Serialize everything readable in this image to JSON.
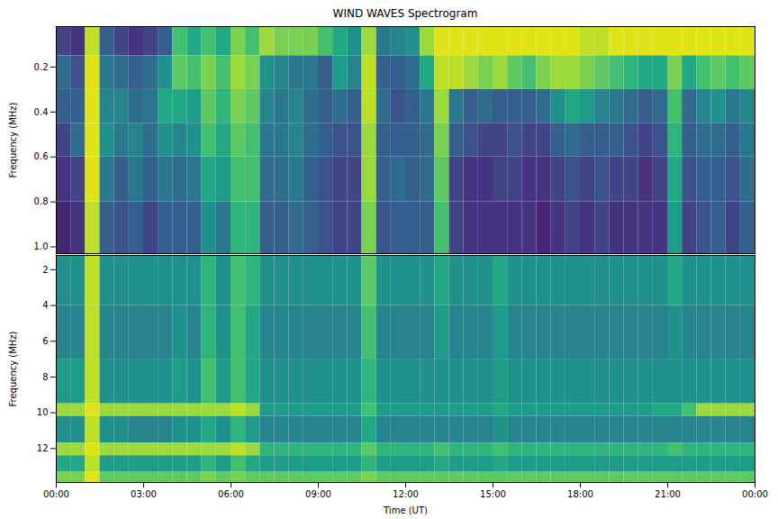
{
  "chart_data": [
    {
      "type": "heatmap",
      "title": "WIND WAVES Spectrogram",
      "ylabel": "Frequency (MHz)",
      "color": "viridis",
      "zlim": [
        0,
        1
      ],
      "tick_labels": "y",
      "xlim": [
        0,
        24
      ],
      "ylim": [
        0.02,
        1.03
      ],
      "yticks": [
        0.2,
        0.4,
        0.6,
        0.8,
        {
          "value": 1,
          "label": "1.0"
        }
      ],
      "x_edges": [
        0,
        0.5,
        1,
        1.5,
        2,
        2.5,
        3,
        3.5,
        4,
        4.5,
        5,
        5.5,
        6,
        6.5,
        7,
        7.5,
        8,
        8.5,
        9,
        9.5,
        10,
        10.5,
        11,
        11.5,
        12,
        12.5,
        13,
        13.5,
        14,
        14.5,
        15,
        15.5,
        16,
        16.5,
        17,
        17.5,
        18,
        18.5,
        19,
        19.5,
        20,
        20.5,
        21,
        21.5,
        22,
        22.5,
        23,
        23.5,
        24
      ],
      "y_edges": [
        0.02,
        0.15,
        0.3,
        0.45,
        0.6,
        0.8,
        1.03
      ],
      "values": [
        [
          0.2,
          0.15,
          0.9,
          0.3,
          0.2,
          0.15,
          0.2,
          0.3,
          0.7,
          0.6,
          0.7,
          0.6,
          0.8,
          0.7,
          0.85,
          0.8,
          0.8,
          0.8,
          0.7,
          0.6,
          0.5,
          0.85,
          0.4,
          0.45,
          0.5,
          0.85,
          0.95,
          0.95,
          0.95,
          0.95,
          0.95,
          0.95,
          0.95,
          0.95,
          0.95,
          0.95,
          0.9,
          0.9,
          0.95,
          0.95,
          0.95,
          0.95,
          0.95,
          0.95,
          0.95,
          0.95,
          0.95,
          0.95
        ],
        [
          0.35,
          0.25,
          0.95,
          0.4,
          0.35,
          0.3,
          0.35,
          0.5,
          0.75,
          0.7,
          0.8,
          0.7,
          0.85,
          0.8,
          0.5,
          0.45,
          0.4,
          0.4,
          0.3,
          0.55,
          0.45,
          0.9,
          0.3,
          0.3,
          0.35,
          0.6,
          0.9,
          0.9,
          0.85,
          0.8,
          0.85,
          0.75,
          0.7,
          0.8,
          0.85,
          0.85,
          0.8,
          0.75,
          0.7,
          0.65,
          0.6,
          0.6,
          0.8,
          0.6,
          0.7,
          0.75,
          0.7,
          0.75
        ],
        [
          0.3,
          0.3,
          0.95,
          0.45,
          0.45,
          0.35,
          0.4,
          0.6,
          0.6,
          0.55,
          0.75,
          0.65,
          0.8,
          0.75,
          0.45,
          0.4,
          0.45,
          0.35,
          0.3,
          0.35,
          0.3,
          0.9,
          0.35,
          0.25,
          0.3,
          0.4,
          0.85,
          0.4,
          0.3,
          0.35,
          0.3,
          0.3,
          0.3,
          0.35,
          0.5,
          0.6,
          0.55,
          0.45,
          0.4,
          0.35,
          0.3,
          0.35,
          0.7,
          0.35,
          0.45,
          0.5,
          0.4,
          0.45
        ],
        [
          0.2,
          0.35,
          0.95,
          0.5,
          0.4,
          0.45,
          0.35,
          0.5,
          0.45,
          0.5,
          0.7,
          0.6,
          0.75,
          0.7,
          0.4,
          0.4,
          0.45,
          0.35,
          0.3,
          0.25,
          0.25,
          0.85,
          0.3,
          0.3,
          0.3,
          0.35,
          0.8,
          0.3,
          0.25,
          0.2,
          0.2,
          0.25,
          0.2,
          0.2,
          0.3,
          0.35,
          0.3,
          0.3,
          0.3,
          0.25,
          0.2,
          0.25,
          0.65,
          0.3,
          0.35,
          0.35,
          0.3,
          0.4
        ],
        [
          0.15,
          0.2,
          0.95,
          0.4,
          0.3,
          0.4,
          0.3,
          0.4,
          0.35,
          0.4,
          0.6,
          0.55,
          0.7,
          0.7,
          0.35,
          0.35,
          0.4,
          0.3,
          0.25,
          0.2,
          0.2,
          0.85,
          0.3,
          0.35,
          0.3,
          0.35,
          0.75,
          0.2,
          0.15,
          0.15,
          0.2,
          0.2,
          0.15,
          0.15,
          0.2,
          0.25,
          0.2,
          0.25,
          0.2,
          0.2,
          0.15,
          0.2,
          0.6,
          0.25,
          0.3,
          0.3,
          0.25,
          0.35
        ],
        [
          0.1,
          0.15,
          0.9,
          0.3,
          0.25,
          0.3,
          0.2,
          0.3,
          0.3,
          0.3,
          0.5,
          0.4,
          0.65,
          0.65,
          0.3,
          0.3,
          0.35,
          0.3,
          0.25,
          0.2,
          0.2,
          0.8,
          0.25,
          0.3,
          0.3,
          0.3,
          0.7,
          0.2,
          0.15,
          0.15,
          0.15,
          0.15,
          0.15,
          0.1,
          0.15,
          0.2,
          0.15,
          0.2,
          0.15,
          0.15,
          0.15,
          0.15,
          0.55,
          0.2,
          0.25,
          0.3,
          0.2,
          0.3
        ]
      ]
    },
    {
      "type": "heatmap",
      "xlabel": "Time (UT)",
      "ylabel": "Frequency (MHz)",
      "color": "viridis",
      "zlim": [
        0,
        1
      ],
      "xlim": [
        0,
        24
      ],
      "xticks": [
        {
          "value": 0,
          "label": "00:00"
        },
        {
          "value": 3,
          "label": "03:00"
        },
        {
          "value": 6,
          "label": "06:00"
        },
        {
          "value": 9,
          "label": "09:00"
        },
        {
          "value": 12,
          "label": "12:00"
        },
        {
          "value": 15,
          "label": "15:00"
        },
        {
          "value": 18,
          "label": "18:00"
        },
        {
          "value": 21,
          "label": "21:00"
        },
        {
          "value": 24,
          "label": "00:00"
        }
      ],
      "ylim": [
        1.2,
        13.9
      ],
      "yticks": [
        2,
        4,
        6,
        8,
        10,
        12
      ],
      "x_edges": [
        0,
        0.5,
        1,
        1.5,
        2,
        2.5,
        3,
        3.5,
        4,
        4.5,
        5,
        5.5,
        6,
        6.5,
        7,
        7.5,
        8,
        8.5,
        9,
        9.5,
        10,
        10.5,
        11,
        11.5,
        12,
        12.5,
        13,
        13.5,
        14,
        14.5,
        15,
        15.5,
        16,
        16.5,
        17,
        17.5,
        18,
        18.5,
        19,
        19.5,
        20,
        20.5,
        21,
        21.5,
        22,
        22.5,
        23,
        23.5,
        24
      ],
      "y_edges": [
        1.2,
        4,
        7,
        9.5,
        10.2,
        11.7,
        12.4,
        13.3,
        13.9
      ],
      "values": [
        [
          0.5,
          0.5,
          0.9,
          0.5,
          0.5,
          0.5,
          0.5,
          0.5,
          0.5,
          0.5,
          0.65,
          0.5,
          0.7,
          0.65,
          0.5,
          0.5,
          0.5,
          0.5,
          0.5,
          0.5,
          0.5,
          0.75,
          0.5,
          0.5,
          0.5,
          0.5,
          0.6,
          0.5,
          0.5,
          0.5,
          0.6,
          0.5,
          0.5,
          0.5,
          0.5,
          0.5,
          0.5,
          0.5,
          0.5,
          0.5,
          0.5,
          0.5,
          0.6,
          0.5,
          0.5,
          0.5,
          0.5,
          0.5
        ],
        [
          0.45,
          0.45,
          0.9,
          0.45,
          0.45,
          0.45,
          0.45,
          0.45,
          0.5,
          0.45,
          0.65,
          0.5,
          0.7,
          0.6,
          0.45,
          0.45,
          0.45,
          0.45,
          0.45,
          0.45,
          0.45,
          0.7,
          0.45,
          0.45,
          0.45,
          0.45,
          0.55,
          0.45,
          0.45,
          0.45,
          0.55,
          0.45,
          0.45,
          0.45,
          0.45,
          0.45,
          0.45,
          0.45,
          0.45,
          0.45,
          0.45,
          0.45,
          0.5,
          0.45,
          0.45,
          0.45,
          0.45,
          0.45
        ],
        [
          0.55,
          0.55,
          0.9,
          0.5,
          0.5,
          0.5,
          0.5,
          0.5,
          0.55,
          0.5,
          0.7,
          0.55,
          0.7,
          0.6,
          0.5,
          0.5,
          0.5,
          0.5,
          0.5,
          0.5,
          0.5,
          0.65,
          0.5,
          0.5,
          0.5,
          0.5,
          0.5,
          0.5,
          0.5,
          0.5,
          0.55,
          0.5,
          0.5,
          0.5,
          0.5,
          0.5,
          0.5,
          0.5,
          0.5,
          0.5,
          0.5,
          0.5,
          0.5,
          0.5,
          0.5,
          0.5,
          0.5,
          0.5
        ],
        [
          0.85,
          0.85,
          0.95,
          0.85,
          0.85,
          0.85,
          0.85,
          0.85,
          0.85,
          0.85,
          0.85,
          0.85,
          0.9,
          0.85,
          0.55,
          0.55,
          0.55,
          0.55,
          0.55,
          0.55,
          0.55,
          0.7,
          0.55,
          0.55,
          0.55,
          0.55,
          0.55,
          0.55,
          0.55,
          0.55,
          0.6,
          0.55,
          0.55,
          0.55,
          0.55,
          0.55,
          0.55,
          0.55,
          0.55,
          0.55,
          0.55,
          0.6,
          0.6,
          0.7,
          0.85,
          0.85,
          0.85,
          0.85
        ],
        [
          0.5,
          0.5,
          0.9,
          0.5,
          0.5,
          0.45,
          0.45,
          0.45,
          0.5,
          0.5,
          0.6,
          0.5,
          0.65,
          0.55,
          0.45,
          0.45,
          0.45,
          0.45,
          0.45,
          0.45,
          0.45,
          0.6,
          0.45,
          0.45,
          0.45,
          0.45,
          0.45,
          0.45,
          0.45,
          0.45,
          0.5,
          0.45,
          0.45,
          0.45,
          0.45,
          0.45,
          0.45,
          0.45,
          0.45,
          0.45,
          0.45,
          0.45,
          0.45,
          0.45,
          0.45,
          0.45,
          0.45,
          0.45
        ],
        [
          0.85,
          0.85,
          0.95,
          0.85,
          0.85,
          0.85,
          0.85,
          0.85,
          0.85,
          0.85,
          0.85,
          0.85,
          0.9,
          0.85,
          0.65,
          0.65,
          0.65,
          0.65,
          0.65,
          0.65,
          0.65,
          0.75,
          0.65,
          0.65,
          0.65,
          0.65,
          0.7,
          0.65,
          0.65,
          0.65,
          0.7,
          0.65,
          0.65,
          0.65,
          0.65,
          0.65,
          0.65,
          0.65,
          0.65,
          0.65,
          0.65,
          0.65,
          0.7,
          0.65,
          0.65,
          0.65,
          0.65,
          0.65
        ],
        [
          0.6,
          0.6,
          0.9,
          0.55,
          0.55,
          0.55,
          0.55,
          0.55,
          0.55,
          0.55,
          0.65,
          0.55,
          0.7,
          0.6,
          0.55,
          0.55,
          0.55,
          0.55,
          0.55,
          0.55,
          0.55,
          0.65,
          0.55,
          0.55,
          0.55,
          0.55,
          0.6,
          0.55,
          0.55,
          0.55,
          0.6,
          0.55,
          0.55,
          0.55,
          0.55,
          0.55,
          0.55,
          0.55,
          0.55,
          0.55,
          0.55,
          0.55,
          0.55,
          0.55,
          0.55,
          0.55,
          0.55,
          0.55
        ],
        [
          0.8,
          0.8,
          0.95,
          0.75,
          0.75,
          0.75,
          0.75,
          0.75,
          0.75,
          0.75,
          0.8,
          0.75,
          0.8,
          0.75,
          0.75,
          0.75,
          0.75,
          0.75,
          0.75,
          0.75,
          0.75,
          0.8,
          0.75,
          0.75,
          0.75,
          0.75,
          0.75,
          0.75,
          0.75,
          0.75,
          0.75,
          0.75,
          0.75,
          0.75,
          0.75,
          0.75,
          0.75,
          0.75,
          0.75,
          0.75,
          0.75,
          0.75,
          0.75,
          0.75,
          0.75,
          0.75,
          0.75,
          0.75
        ]
      ]
    }
  ]
}
